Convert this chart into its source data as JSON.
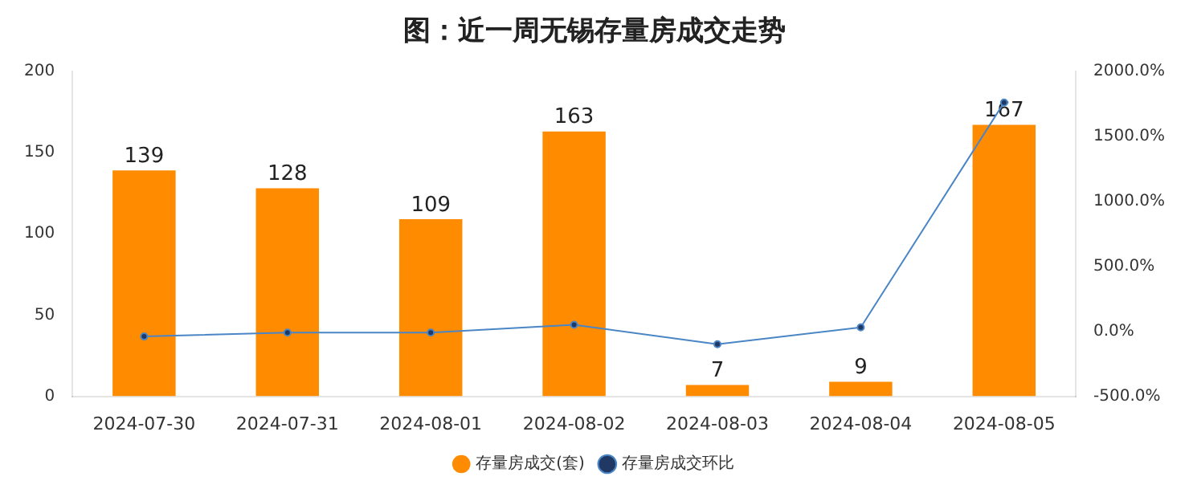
{
  "chart_data": {
    "type": "bar",
    "title": "图：近一周无锡存量房成交走势",
    "categories": [
      "2024-07-30",
      "2024-07-31",
      "2024-08-01",
      "2024-08-02",
      "2024-08-03",
      "2024-08-04",
      "2024-08-05"
    ],
    "series": [
      {
        "name": "存量房成交(套)",
        "color": "#ff8c00",
        "values": [
          139,
          128,
          109,
          163,
          7,
          9,
          167
        ],
        "value_labels": [
          "139",
          "128",
          "109",
          "163",
          "7",
          "9",
          "167"
        ]
      },
      {
        "name": "存量房成交环比",
        "type": "line",
        "axis": "y2",
        "color": "#4a86c5",
        "values": [
          -40,
          -10,
          -10,
          50,
          -100,
          30,
          1760
        ]
      }
    ],
    "ylim": [
      0,
      200
    ],
    "yticks": [
      0,
      50,
      100,
      150,
      200
    ],
    "y2lim": [
      -500,
      2000
    ],
    "y2ticks": [
      {
        "value": -500,
        "label": "-500.0%"
      },
      {
        "value": 0,
        "label": "0.0%"
      },
      {
        "value": 500,
        "label": "500.0%"
      },
      {
        "value": 1000,
        "label": "1000.0%"
      },
      {
        "value": 1500,
        "label": "1500.0%"
      },
      {
        "value": 2000,
        "label": "2000.0%"
      }
    ],
    "grid": false,
    "legend": "bottom",
    "marker": "circle",
    "line_style": "solid"
  }
}
